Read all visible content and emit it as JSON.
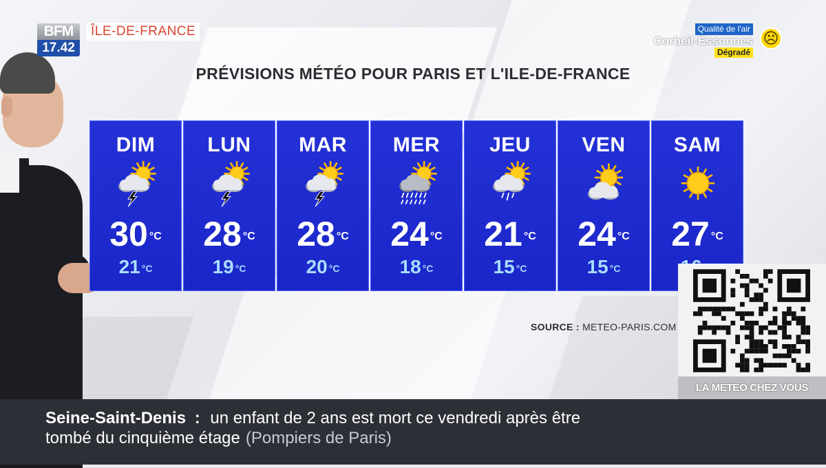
{
  "header": {
    "logo_text": "BFM",
    "time": "17.42",
    "region": "ÎLE-DE-FRANCE"
  },
  "air_quality": {
    "label": "Qualité de l'air",
    "city": "Corbeil-Essonnes",
    "status": "Dégradé",
    "status_color": "#ffe21a",
    "icon": "sad-face-icon"
  },
  "title": "PRÉVISIONS MÉTÉO POUR PARIS ET L'ILE-DE-FRANCE",
  "forecast": {
    "unit": "°C",
    "days": [
      {
        "name": "DIM",
        "max": "30",
        "min": "21",
        "icon": "sun-cloud-lightning-icon"
      },
      {
        "name": "LUN",
        "max": "28",
        "min": "19",
        "icon": "sun-cloud-lightning-icon"
      },
      {
        "name": "MAR",
        "max": "28",
        "min": "20",
        "icon": "sun-cloud-lightning-icon"
      },
      {
        "name": "MER",
        "max": "24",
        "min": "18",
        "icon": "sun-cloud-heavy-rain-icon"
      },
      {
        "name": "JEU",
        "max": "21",
        "min": "15",
        "icon": "sun-cloud-rain-icon"
      },
      {
        "name": "VEN",
        "max": "24",
        "min": "15",
        "icon": "sun-cloud-icon"
      },
      {
        "name": "SAM",
        "max": "27",
        "min": "16",
        "icon": "sun-icon"
      }
    ]
  },
  "source": {
    "label": "SOURCE :",
    "value": "METEO-PARIS.COM"
  },
  "qr": {
    "caption": "LA MÉTÉO CHEZ VOUS"
  },
  "ticker": {
    "headline": "Seine-Saint-Denis",
    "separator": ":",
    "text1": "un enfant de 2 ans est mort ce vendredi après être",
    "text2": "tombé du cinquième étage",
    "source": "(Pompiers de Paris)"
  }
}
